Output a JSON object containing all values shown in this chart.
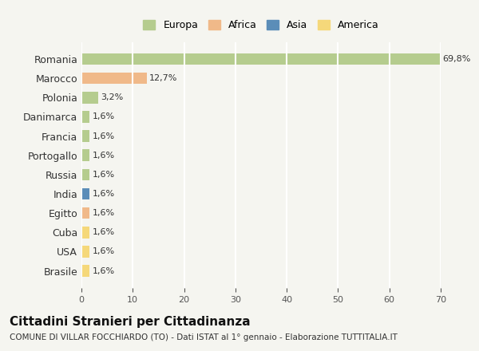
{
  "countries": [
    "Romania",
    "Marocco",
    "Polonia",
    "Danimarca",
    "Francia",
    "Portogallo",
    "Russia",
    "India",
    "Egitto",
    "Cuba",
    "USA",
    "Brasile"
  ],
  "values": [
    69.8,
    12.7,
    3.2,
    1.6,
    1.6,
    1.6,
    1.6,
    1.6,
    1.6,
    1.6,
    1.6,
    1.6
  ],
  "labels": [
    "69,8%",
    "12,7%",
    "3,2%",
    "1,6%",
    "1,6%",
    "1,6%",
    "1,6%",
    "1,6%",
    "1,6%",
    "1,6%",
    "1,6%",
    "1,6%"
  ],
  "colors": [
    "#b5cc8e",
    "#f0b989",
    "#b5cc8e",
    "#b5cc8e",
    "#b5cc8e",
    "#b5cc8e",
    "#b5cc8e",
    "#5b8db8",
    "#f0b989",
    "#f5d87a",
    "#f5d87a",
    "#f5d87a"
  ],
  "legend_labels": [
    "Europa",
    "Africa",
    "Asia",
    "America"
  ],
  "legend_colors": [
    "#b5cc8e",
    "#f0b989",
    "#5b8db8",
    "#f5d87a"
  ],
  "xlim": [
    0,
    70
  ],
  "xticks": [
    0,
    10,
    20,
    30,
    40,
    50,
    60,
    70
  ],
  "title": "Cittadini Stranieri per Cittadinanza",
  "subtitle": "COMUNE DI VILLAR FOCCHIARDO (TO) - Dati ISTAT al 1° gennaio - Elaborazione TUTTITALIA.IT",
  "background_color": "#f5f5f0",
  "grid_color": "#ffffff",
  "bar_height": 0.6
}
